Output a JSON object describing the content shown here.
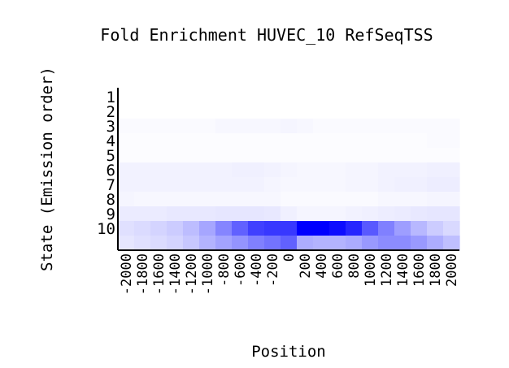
{
  "chart_data": {
    "type": "heatmap",
    "title": "Fold Enrichment HUVEC_10 RefSeqTSS",
    "xlabel": "Position",
    "ylabel": "State (Emission order)",
    "x": [
      "-2000",
      "-1800",
      "-1600",
      "-1400",
      "-1200",
      "-1000",
      "-800",
      "-600",
      "-400",
      "-200",
      "0",
      "200",
      "400",
      "600",
      "800",
      "1000",
      "1200",
      "1400",
      "1600",
      "1800",
      "2000"
    ],
    "y": [
      "1",
      "2",
      "3",
      "4",
      "5",
      "6",
      "7",
      "8",
      "9",
      "10"
    ],
    "color_low": "#ffffff",
    "color_high": "#0000ff",
    "values": [
      [
        0.0,
        0.0,
        0.0,
        0.0,
        0.0,
        0.0,
        0.0,
        0.0,
        0.0,
        0.0,
        0.0,
        0.0,
        0.0,
        0.0,
        0.0,
        0.0,
        0.0,
        0.0,
        0.0,
        0.0,
        0.0
      ],
      [
        0.02,
        0.02,
        0.02,
        0.02,
        0.02,
        0.02,
        0.03,
        0.03,
        0.03,
        0.03,
        0.04,
        0.03,
        0.02,
        0.02,
        0.02,
        0.02,
        0.02,
        0.02,
        0.02,
        0.02,
        0.02
      ],
      [
        0.01,
        0.01,
        0.01,
        0.01,
        0.01,
        0.01,
        0.01,
        0.01,
        0.01,
        0.01,
        0.01,
        0.01,
        0.01,
        0.01,
        0.01,
        0.01,
        0.01,
        0.01,
        0.01,
        0.02,
        0.02
      ],
      [
        0.01,
        0.01,
        0.01,
        0.01,
        0.01,
        0.01,
        0.01,
        0.01,
        0.01,
        0.01,
        0.01,
        0.01,
        0.01,
        0.01,
        0.01,
        0.01,
        0.01,
        0.01,
        0.01,
        0.01,
        0.01
      ],
      [
        0.05,
        0.05,
        0.05,
        0.05,
        0.05,
        0.05,
        0.05,
        0.06,
        0.06,
        0.05,
        0.04,
        0.03,
        0.03,
        0.03,
        0.04,
        0.04,
        0.05,
        0.05,
        0.05,
        0.06,
        0.06
      ],
      [
        0.05,
        0.05,
        0.05,
        0.05,
        0.05,
        0.05,
        0.05,
        0.05,
        0.05,
        0.04,
        0.03,
        0.03,
        0.03,
        0.03,
        0.04,
        0.04,
        0.05,
        0.06,
        0.06,
        0.07,
        0.07
      ],
      [
        0.04,
        0.03,
        0.03,
        0.03,
        0.03,
        0.03,
        0.03,
        0.03,
        0.03,
        0.03,
        0.02,
        0.02,
        0.02,
        0.02,
        0.02,
        0.02,
        0.03,
        0.03,
        0.03,
        0.04,
        0.04
      ],
      [
        0.08,
        0.08,
        0.08,
        0.09,
        0.09,
        0.09,
        0.1,
        0.1,
        0.1,
        0.09,
        0.06,
        0.04,
        0.04,
        0.04,
        0.05,
        0.06,
        0.07,
        0.08,
        0.09,
        0.1,
        0.1
      ],
      [
        0.12,
        0.14,
        0.17,
        0.2,
        0.26,
        0.35,
        0.48,
        0.62,
        0.75,
        0.78,
        0.78,
        1.0,
        1.0,
        0.95,
        0.85,
        0.65,
        0.5,
        0.38,
        0.28,
        0.2,
        0.15
      ],
      [
        0.1,
        0.12,
        0.14,
        0.17,
        0.22,
        0.3,
        0.36,
        0.42,
        0.5,
        0.55,
        0.62,
        0.32,
        0.3,
        0.3,
        0.33,
        0.4,
        0.45,
        0.45,
        0.4,
        0.32,
        0.25
      ]
    ]
  }
}
